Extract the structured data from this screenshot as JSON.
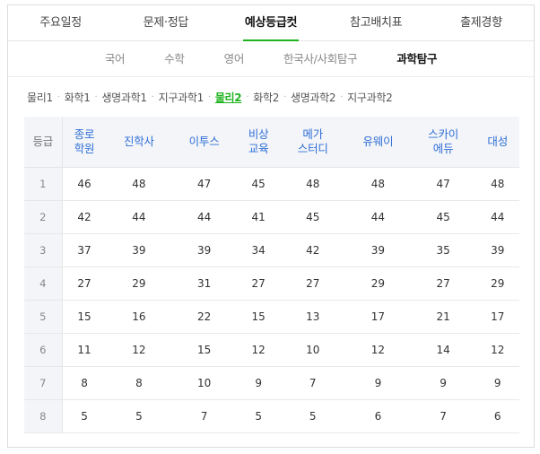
{
  "main_tabs": [
    {
      "label": "주요일정",
      "active": false
    },
    {
      "label": "문제·정답",
      "active": false
    },
    {
      "label": "예상등급컷",
      "active": true
    },
    {
      "label": "참고배치표",
      "active": false
    },
    {
      "label": "출제경향",
      "active": false
    }
  ],
  "sub_tabs": [
    {
      "label": "국어",
      "active": false
    },
    {
      "label": "수학",
      "active": false
    },
    {
      "label": "영어",
      "active": false
    },
    {
      "label": "한국사/사회탐구",
      "active": false
    },
    {
      "label": "과학탐구",
      "active": true
    }
  ],
  "subjects": [
    {
      "label": "물리1",
      "active": false
    },
    {
      "label": "화학1",
      "active": false
    },
    {
      "label": "생명과학1",
      "active": false
    },
    {
      "label": "지구과학1",
      "active": false
    },
    {
      "label": "물리2",
      "active": true
    },
    {
      "label": "화학2",
      "active": false
    },
    {
      "label": "생명과학2",
      "active": false
    },
    {
      "label": "지구과학2",
      "active": false
    }
  ],
  "subject_separator": "·",
  "table": {
    "grade_header": "등급",
    "columns": [
      [
        "종로",
        "학원"
      ],
      [
        "진학사"
      ],
      [
        "이투스"
      ],
      [
        "비상",
        "교육"
      ],
      [
        "메가",
        "스터디"
      ],
      [
        "유웨이"
      ],
      [
        "스카이",
        "에듀"
      ],
      [
        "대성"
      ]
    ],
    "rows": [
      {
        "grade": "1",
        "values": [
          "46",
          "48",
          "47",
          "45",
          "48",
          "48",
          "47",
          "48"
        ]
      },
      {
        "grade": "2",
        "values": [
          "42",
          "44",
          "44",
          "41",
          "45",
          "44",
          "45",
          "44"
        ]
      },
      {
        "grade": "3",
        "values": [
          "37",
          "39",
          "39",
          "34",
          "42",
          "39",
          "35",
          "39"
        ]
      },
      {
        "grade": "4",
        "values": [
          "27",
          "29",
          "31",
          "27",
          "27",
          "29",
          "27",
          "29"
        ]
      },
      {
        "grade": "5",
        "values": [
          "15",
          "16",
          "22",
          "15",
          "13",
          "17",
          "21",
          "17"
        ]
      },
      {
        "grade": "6",
        "values": [
          "11",
          "12",
          "15",
          "12",
          "10",
          "12",
          "14",
          "12"
        ]
      },
      {
        "grade": "7",
        "values": [
          "8",
          "8",
          "10",
          "9",
          "7",
          "9",
          "9",
          "9"
        ]
      },
      {
        "grade": "8",
        "values": [
          "5",
          "5",
          "7",
          "5",
          "5",
          "6",
          "7",
          "6"
        ]
      }
    ]
  },
  "colors": {
    "accent_green": "#1eb31e",
    "header_blue": "#2e6fd6",
    "header_bg": "#f4f5f9"
  }
}
